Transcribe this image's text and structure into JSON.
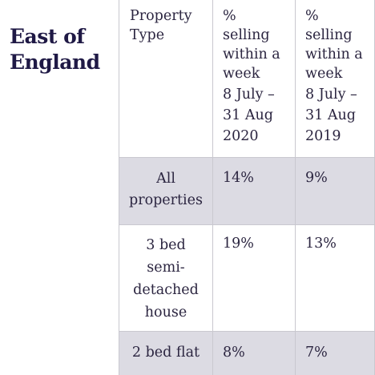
{
  "region": {
    "title_line1": "East of",
    "title_line2": "England"
  },
  "table": {
    "headers": {
      "property_type": [
        "Property",
        "Type"
      ],
      "pct_2020": [
        "%",
        "selling",
        "within a",
        "week",
        "8 July –",
        "31 Aug",
        "2020"
      ],
      "pct_2019": [
        "%",
        "selling",
        "within a",
        "week",
        "8 July –",
        "31 Aug",
        "2019"
      ]
    },
    "rows": [
      {
        "type": [
          "All",
          "properties"
        ],
        "pct_2020": "14%",
        "pct_2019": "9%"
      },
      {
        "type": [
          "3 bed",
          "semi-",
          "detached",
          "house"
        ],
        "pct_2020": "19%",
        "pct_2019": "13%"
      },
      {
        "type": [
          "2 bed flat"
        ],
        "pct_2020": "8%",
        "pct_2019": "7%"
      }
    ]
  }
}
